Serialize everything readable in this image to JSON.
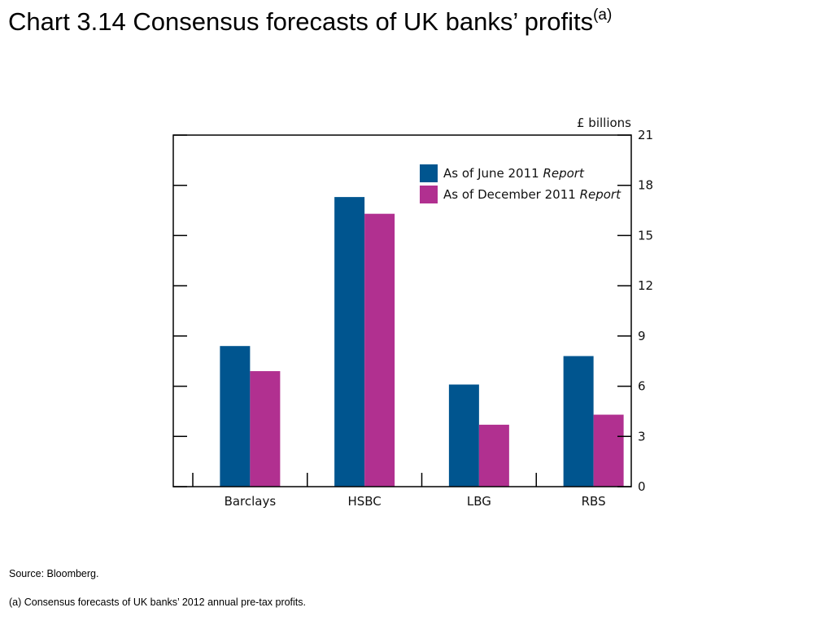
{
  "title": {
    "text": "Chart 3.14  Consensus forecasts of UK banks’ profits",
    "superscript": "(a)"
  },
  "chart_data": {
    "type": "bar",
    "unit_label": "£ billions",
    "categories": [
      "Barclays",
      "HSBC",
      "LBG",
      "RBS"
    ],
    "series": [
      {
        "name": "As of June 2011",
        "name_suffix": "Report",
        "color": "#00558f",
        "values": [
          8.4,
          17.3,
          6.1,
          7.8
        ]
      },
      {
        "name": "As of December 2011",
        "name_suffix": "Report",
        "color": "#b13090",
        "values": [
          6.9,
          16.3,
          3.7,
          4.3
        ]
      }
    ],
    "ylim": [
      0,
      21
    ],
    "yticks": [
      0,
      3,
      6,
      9,
      12,
      15,
      18,
      21
    ],
    "y_axis_side": "right",
    "legend_position": "top-right",
    "grid": false
  },
  "notes": {
    "source": "Source:  Bloomberg.",
    "footnote": "(a)  Consensus forecasts of UK banks’ 2012 annual pre-tax profits."
  }
}
